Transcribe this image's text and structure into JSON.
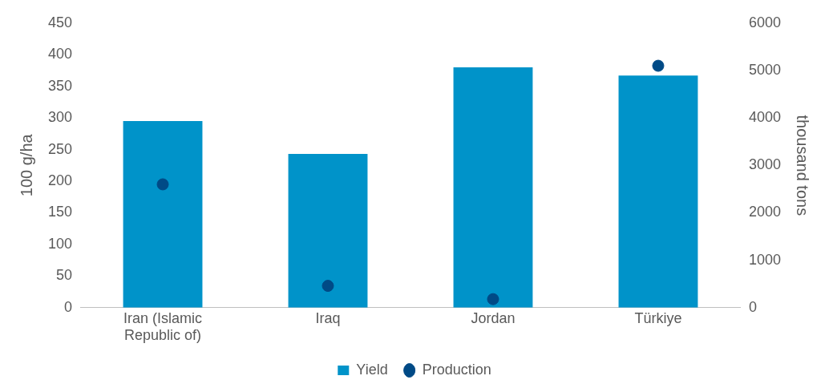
{
  "chart_data": {
    "type": "bar",
    "categories": [
      "Iran (Islamic Republic of)",
      "Iraq",
      "Jordan",
      "Türkiye"
    ],
    "series": [
      {
        "name": "Yield",
        "color": "#0093c9",
        "values": [
          295,
          243,
          380,
          367
        ]
      },
      {
        "name": "Production",
        "type": "scatter",
        "axis": "y2",
        "color": "#004a86",
        "marker": "circle",
        "values": [
          2600,
          460,
          180,
          5100
        ]
      }
    ],
    "ylabel": "100 g/ha",
    "y2label": "thousand tons",
    "ylim": [
      0,
      450
    ],
    "yticks": [
      0,
      50,
      100,
      150,
      200,
      250,
      300,
      350,
      400,
      450
    ],
    "y2lim": [
      0,
      6000
    ],
    "y2ticks": [
      0,
      1000,
      2000,
      3000,
      4000,
      5000,
      6000
    ],
    "grid": false,
    "legend": "bottom"
  }
}
